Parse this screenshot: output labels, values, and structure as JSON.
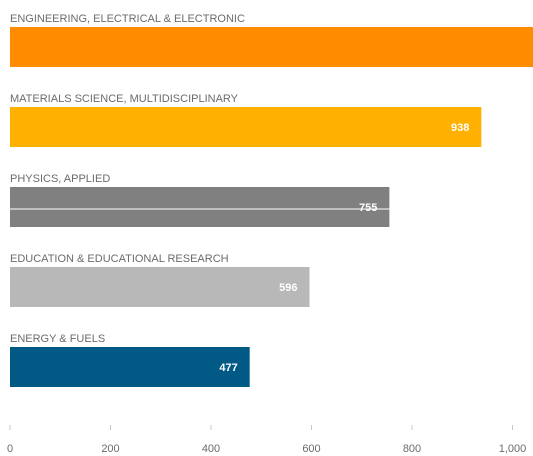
{
  "chart_data": {
    "type": "bar",
    "orientation": "horizontal",
    "categories": [
      "ENGINEERING, ELECTRICAL & ELECTRONIC",
      "MATERIALS SCIENCE, MULTIDISCIPLINARY",
      "PHYSICS, APPLIED",
      "EDUCATION & EDUCATIONAL RESEARCH",
      "ENERGY & FUELS"
    ],
    "values": [
      1045,
      938,
      755,
      596,
      477
    ],
    "value_labels": [
      "",
      "938",
      "755",
      "596",
      "477"
    ],
    "colors": [
      "#ff8c00",
      "#ffb000",
      "#808080",
      "#b8b8b8",
      "#005a85"
    ],
    "xlim": [
      0,
      1045
    ],
    "xticks": [
      0,
      200,
      400,
      600,
      800,
      1000
    ],
    "xtick_labels": [
      "0",
      "200",
      "400",
      "600",
      "800",
      "1,000"
    ],
    "grid": false,
    "legend": "none"
  }
}
